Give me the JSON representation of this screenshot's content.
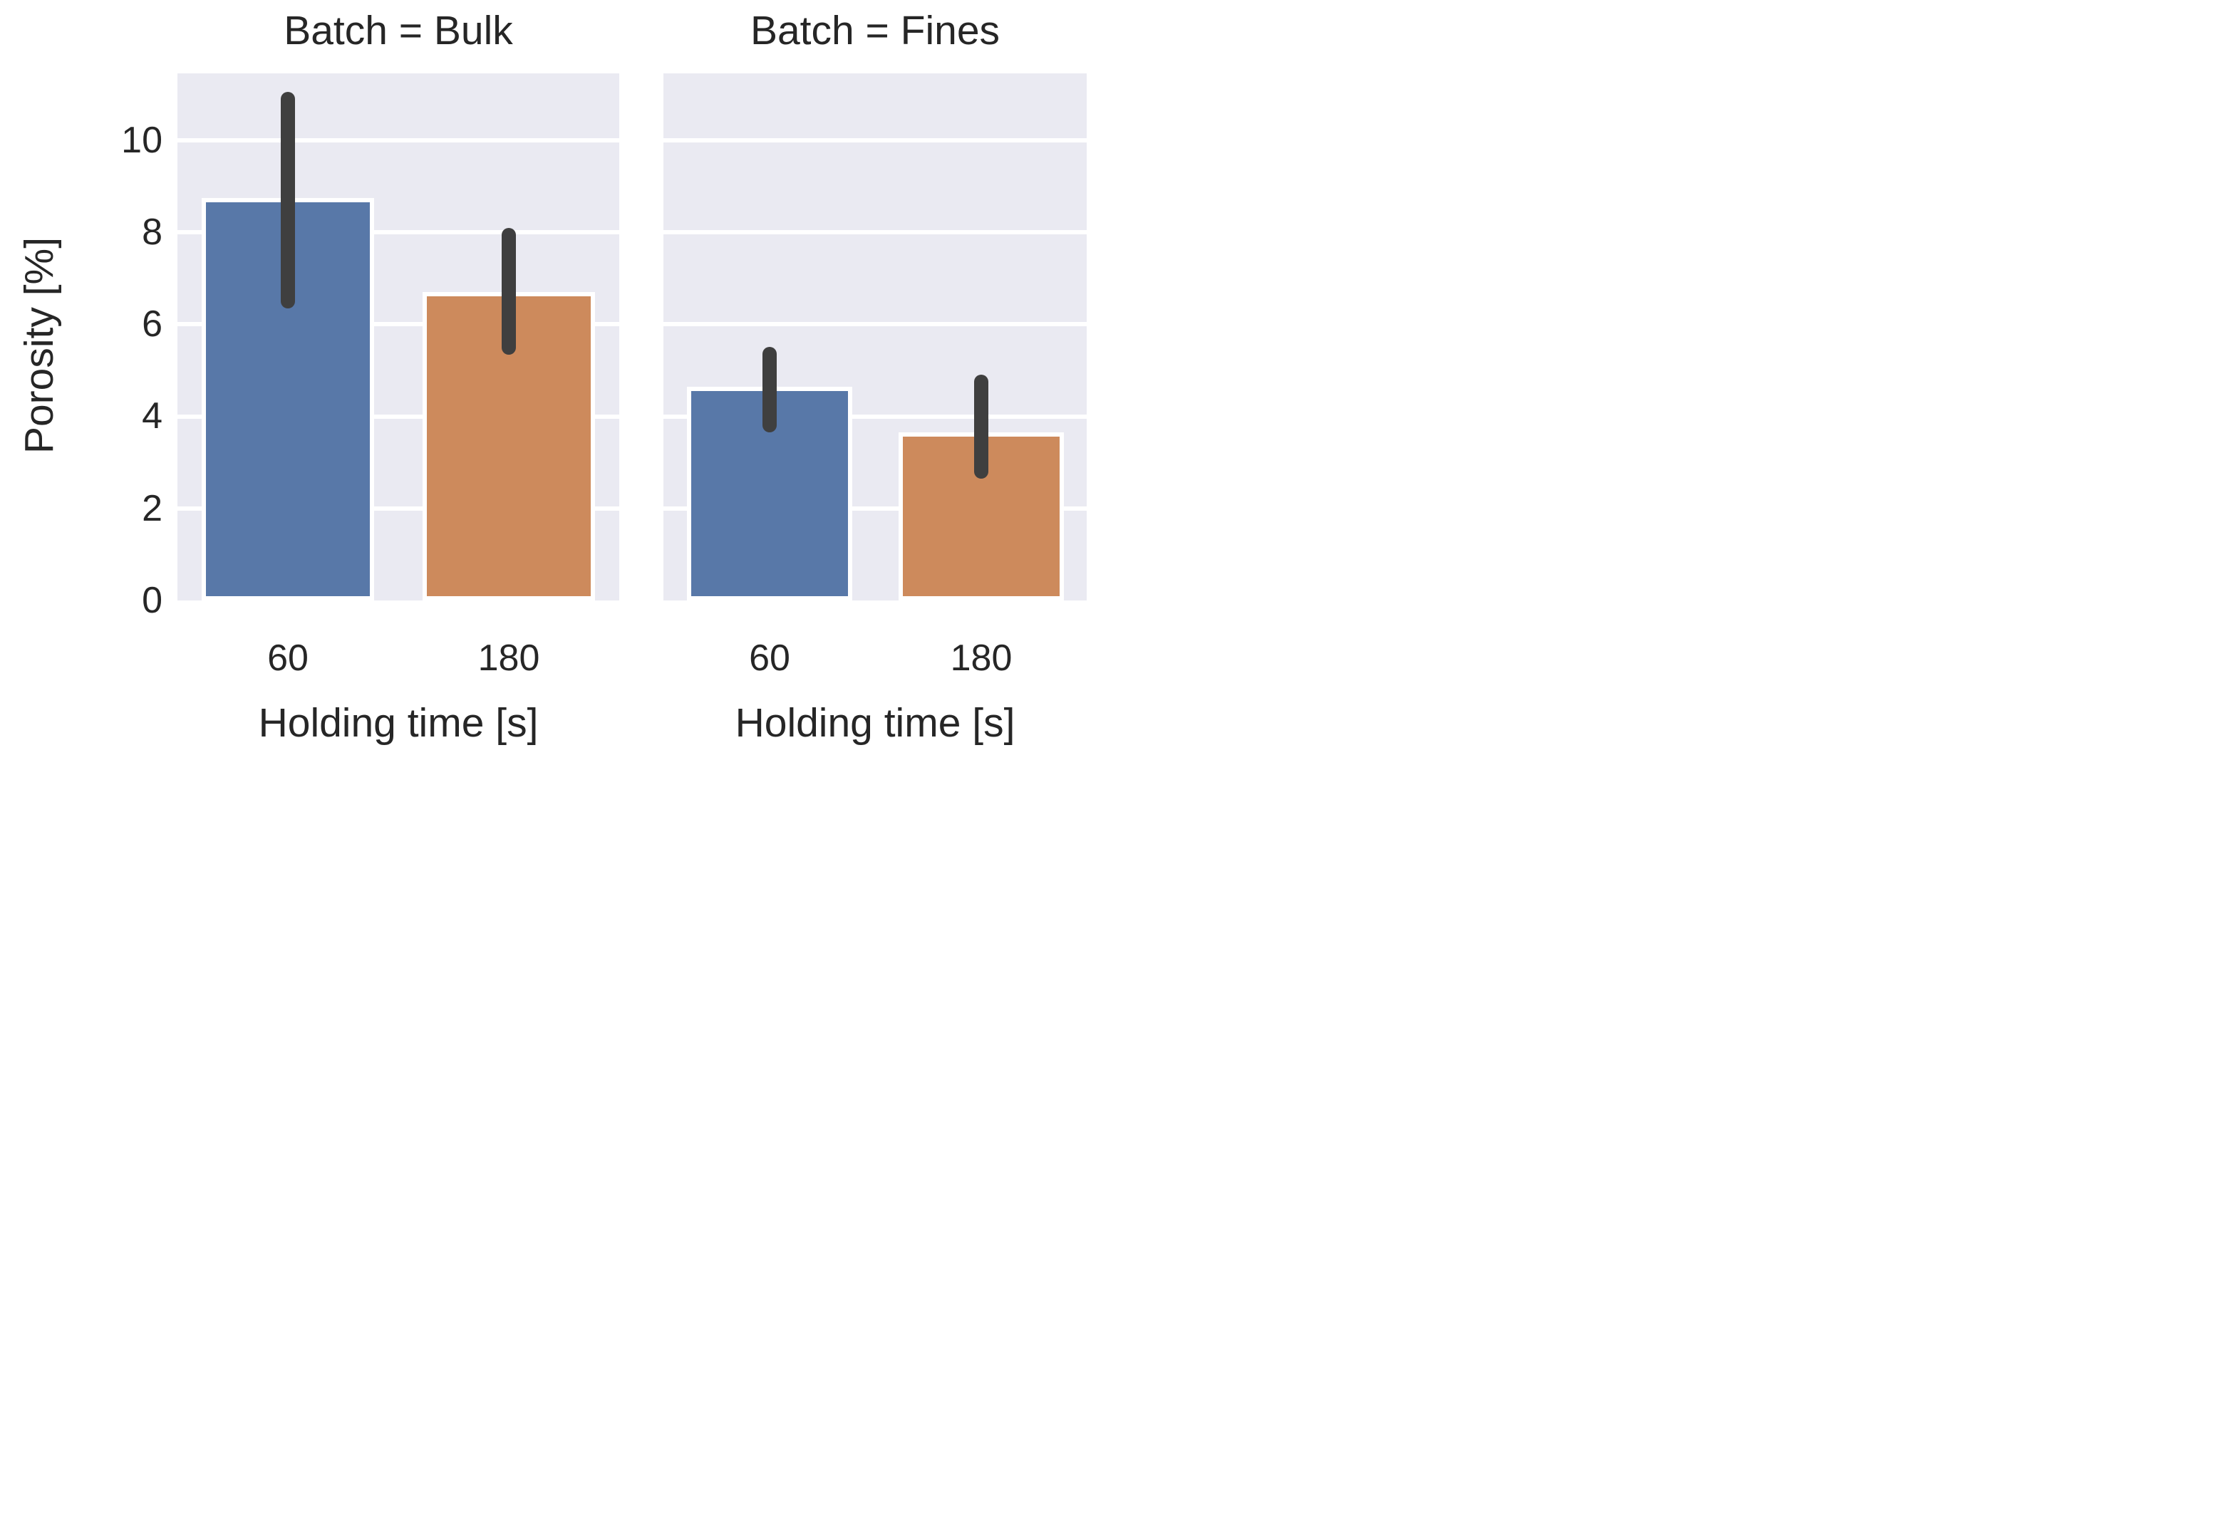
{
  "figure": {
    "background": "#ffffff",
    "plot_background": "#eaeaf2",
    "gridline_color": "#ffffff",
    "text_color": "#262626"
  },
  "chart_data": {
    "type": "bar",
    "facet_by": "Batch",
    "title": "",
    "xlabel": "Holding time [s]",
    "ylabel": "Porosity [%]",
    "categories": [
      "60",
      "180"
    ],
    "yticks": [
      0,
      2,
      4,
      6,
      8,
      10
    ],
    "ylim": [
      0,
      11.45
    ],
    "grid": "horizontal",
    "legend_position": "none",
    "bar_colors": [
      "#5878a8",
      "#cd8a5c"
    ],
    "error_bar_color": "#3f3f3f",
    "facets": [
      {
        "title": "Batch = Bulk",
        "bars": [
          {
            "category": "60",
            "value": 8.7,
            "err_lo": 6.5,
            "err_hi": 10.9
          },
          {
            "category": "180",
            "value": 6.65,
            "err_lo": 5.5,
            "err_hi": 7.95
          }
        ]
      },
      {
        "title": "Batch = Fines",
        "bars": [
          {
            "category": "60",
            "value": 4.6,
            "err_lo": 3.8,
            "err_hi": 5.35
          },
          {
            "category": "180",
            "value": 3.6,
            "err_lo": 2.8,
            "err_hi": 4.75
          }
        ]
      }
    ]
  }
}
